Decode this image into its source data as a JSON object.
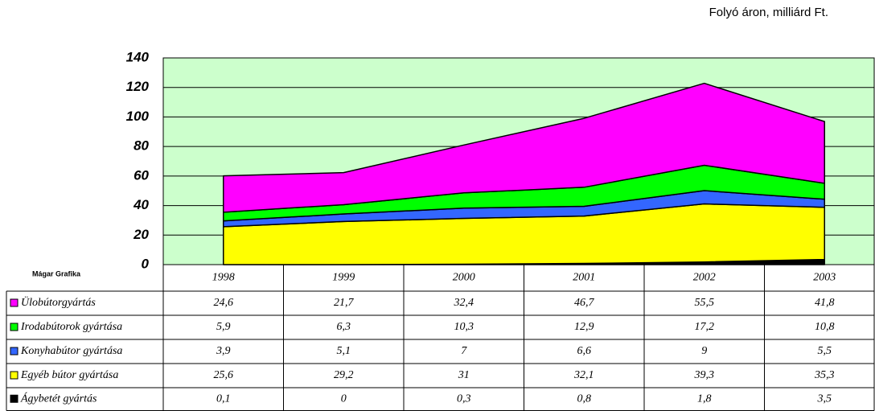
{
  "chart_data": {
    "type": "stacked-area",
    "subtitle": "Folyó áron, milliárd Ft.",
    "annotation": "Mágar Grafika",
    "categories": [
      "1998",
      "1999",
      "2000",
      "2001",
      "2002",
      "2003"
    ],
    "series": [
      {
        "name": "Ülobútorgyártás",
        "color": "#ff00ff",
        "values": [
          24.6,
          21.7,
          32.4,
          46.7,
          55.5,
          41.8
        ],
        "value_labels": [
          "24,6",
          "21,7",
          "32,4",
          "46,7",
          "55,5",
          "41,8"
        ]
      },
      {
        "name": "Irodabútorok gyártása",
        "color": "#00ff00",
        "values": [
          5.9,
          6.3,
          10.3,
          12.9,
          17.2,
          10.8
        ],
        "value_labels": [
          "5,9",
          "6,3",
          "10,3",
          "12,9",
          "17,2",
          "10,8"
        ]
      },
      {
        "name": "Konyhabútor gyártása",
        "color": "#3366ff",
        "values": [
          3.9,
          5.1,
          7,
          6.6,
          9,
          5.5
        ],
        "value_labels": [
          "3,9",
          "5,1",
          "7",
          "6,6",
          "9",
          "5,5"
        ]
      },
      {
        "name": "Egyéb bútor gyártása",
        "color": "#ffff00",
        "values": [
          25.6,
          29.2,
          31,
          32.1,
          39.3,
          35.3
        ],
        "value_labels": [
          "25,6",
          "29,2",
          "31",
          "32,1",
          "39,3",
          "35,3"
        ]
      },
      {
        "name": "Ágybetét gyártás",
        "color": "#000000",
        "values": [
          0.1,
          0,
          0.3,
          0.8,
          1.8,
          3.5
        ],
        "value_labels": [
          "0,1",
          "0",
          "0,3",
          "0,8",
          "1,8",
          "3,5"
        ]
      }
    ],
    "ylim": [
      0,
      140
    ],
    "yticks": [
      0,
      20,
      40,
      60,
      80,
      100,
      120,
      140
    ],
    "grid": true,
    "background": "#ccffcc"
  }
}
